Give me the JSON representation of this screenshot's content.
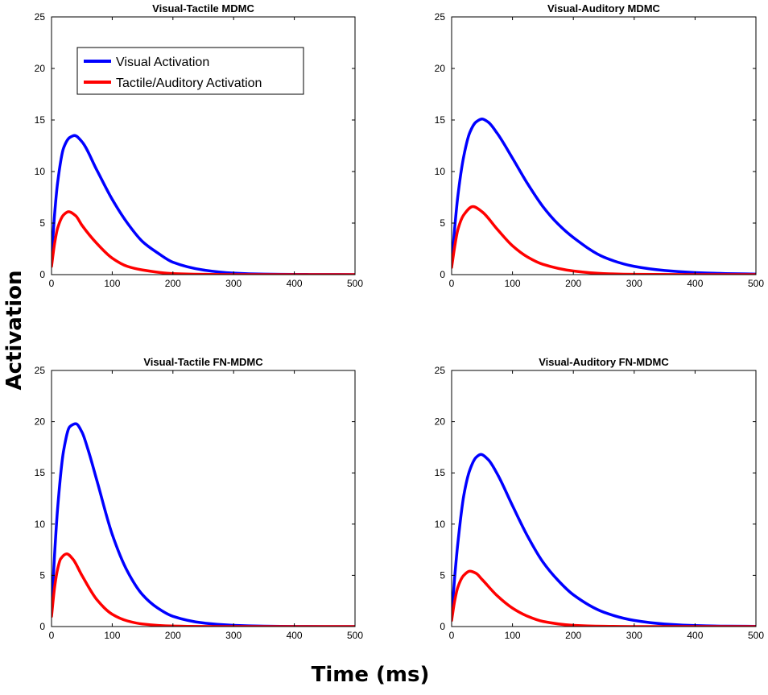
{
  "figure": {
    "ylabel": "Activation",
    "xlabel": "Time (ms)"
  },
  "colors": {
    "visual": "#0000ff",
    "tactile_auditory": "#ff0000",
    "axes": "#000000",
    "background": "#ffffff"
  },
  "chart_data": [
    {
      "type": "line",
      "title": "Visual-Tactile MDMC",
      "xlim": [
        0,
        500
      ],
      "ylim": [
        0,
        25
      ],
      "xticks": [
        0,
        100,
        200,
        300,
        400,
        500
      ],
      "yticks": [
        0,
        5,
        10,
        15,
        20,
        25
      ],
      "legend": {
        "placement": "top-left",
        "entries": [
          "Visual Activation",
          "Tactile/Auditory Activation"
        ]
      },
      "series": [
        {
          "name": "Visual Activation",
          "color": "#0000ff",
          "x": [
            0,
            5,
            10,
            20,
            30,
            38,
            50,
            75,
            100,
            125,
            150,
            175,
            200,
            250,
            300,
            350,
            400,
            450,
            500
          ],
          "y": [
            1.5,
            5.8,
            8.9,
            12.3,
            13.3,
            13.5,
            12.9,
            10.1,
            7.3,
            5.0,
            3.2,
            2.1,
            1.2,
            0.45,
            0.15,
            0.05,
            0.02,
            0.01,
            0.0
          ]
        },
        {
          "name": "Tactile/Auditory Activation",
          "color": "#ff0000",
          "x": [
            0,
            5,
            10,
            20,
            28,
            40,
            50,
            75,
            100,
            125,
            150,
            200,
            250,
            300,
            400,
            500
          ],
          "y": [
            0.8,
            3.0,
            4.5,
            5.8,
            6.1,
            5.7,
            4.8,
            3.0,
            1.6,
            0.8,
            0.45,
            0.1,
            0.03,
            0.0,
            0.0,
            0.0
          ]
        }
      ]
    },
    {
      "type": "line",
      "title": "Visual-Auditory MDMC",
      "xlim": [
        0,
        500
      ],
      "ylim": [
        0,
        25
      ],
      "xticks": [
        0,
        100,
        200,
        300,
        400,
        500
      ],
      "yticks": [
        0,
        5,
        10,
        15,
        20,
        25
      ],
      "series": [
        {
          "name": "Visual Activation",
          "color": "#0000ff",
          "x": [
            0,
            5,
            10,
            20,
            30,
            40,
            50,
            60,
            75,
            100,
            125,
            150,
            175,
            200,
            250,
            300,
            350,
            400,
            450,
            500
          ],
          "y": [
            1.0,
            4.5,
            7.5,
            11.5,
            13.8,
            14.8,
            15.1,
            14.8,
            13.7,
            11.3,
            8.8,
            6.6,
            4.9,
            3.6,
            1.7,
            0.8,
            0.4,
            0.2,
            0.1,
            0.05
          ]
        },
        {
          "name": "Tactile/Auditory Activation",
          "color": "#ff0000",
          "x": [
            0,
            5,
            10,
            20,
            35,
            50,
            75,
            100,
            125,
            150,
            200,
            250,
            300,
            400,
            500
          ],
          "y": [
            0.7,
            2.7,
            4.3,
            5.8,
            6.6,
            6.1,
            4.4,
            2.8,
            1.7,
            1.0,
            0.35,
            0.1,
            0.03,
            0.0,
            0.0
          ]
        }
      ]
    },
    {
      "type": "line",
      "title": "Visual-Tactile FN-MDMC",
      "xlim": [
        0,
        500
      ],
      "ylim": [
        0,
        25
      ],
      "xticks": [
        0,
        100,
        200,
        300,
        400,
        500
      ],
      "yticks": [
        0,
        5,
        10,
        15,
        20,
        25
      ],
      "series": [
        {
          "name": "Visual Activation",
          "color": "#0000ff",
          "x": [
            0,
            5,
            10,
            20,
            30,
            40,
            50,
            60,
            75,
            100,
            125,
            150,
            175,
            200,
            250,
            300,
            350,
            400,
            500
          ],
          "y": [
            1.5,
            7.0,
            11.5,
            17.2,
            19.5,
            19.8,
            19.0,
            17.3,
            14.2,
            9.0,
            5.4,
            3.1,
            1.8,
            1.0,
            0.35,
            0.12,
            0.04,
            0.01,
            0.0
          ]
        },
        {
          "name": "Tactile/Auditory Activation",
          "color": "#ff0000",
          "x": [
            0,
            5,
            10,
            15,
            25,
            35,
            50,
            75,
            100,
            125,
            150,
            200,
            250,
            300,
            400,
            500
          ],
          "y": [
            1.0,
            3.8,
            5.6,
            6.6,
            7.1,
            6.6,
            5.0,
            2.6,
            1.2,
            0.55,
            0.25,
            0.05,
            0.01,
            0.0,
            0.0,
            0.0
          ]
        }
      ]
    },
    {
      "type": "line",
      "title": "Visual-Auditory FN-MDMC",
      "xlim": [
        0,
        500
      ],
      "ylim": [
        0,
        25
      ],
      "xticks": [
        0,
        100,
        200,
        300,
        400,
        500
      ],
      "yticks": [
        0,
        5,
        10,
        15,
        20,
        25
      ],
      "series": [
        {
          "name": "Visual Activation",
          "color": "#0000ff",
          "x": [
            0,
            5,
            10,
            20,
            30,
            40,
            48,
            60,
            75,
            100,
            125,
            150,
            175,
            200,
            250,
            300,
            350,
            400,
            450,
            500
          ],
          "y": [
            1.0,
            4.8,
            8.0,
            12.8,
            15.3,
            16.5,
            16.8,
            16.3,
            14.9,
            11.8,
            8.8,
            6.3,
            4.5,
            3.1,
            1.4,
            0.6,
            0.25,
            0.1,
            0.04,
            0.02
          ]
        },
        {
          "name": "Tactile/Auditory Activation",
          "color": "#ff0000",
          "x": [
            0,
            5,
            10,
            20,
            30,
            40,
            50,
            75,
            100,
            125,
            150,
            200,
            250,
            300,
            400,
            500
          ],
          "y": [
            0.6,
            2.5,
            3.8,
            5.0,
            5.4,
            5.2,
            4.6,
            3.0,
            1.8,
            1.0,
            0.5,
            0.12,
            0.03,
            0.0,
            0.0,
            0.0
          ]
        }
      ]
    }
  ]
}
